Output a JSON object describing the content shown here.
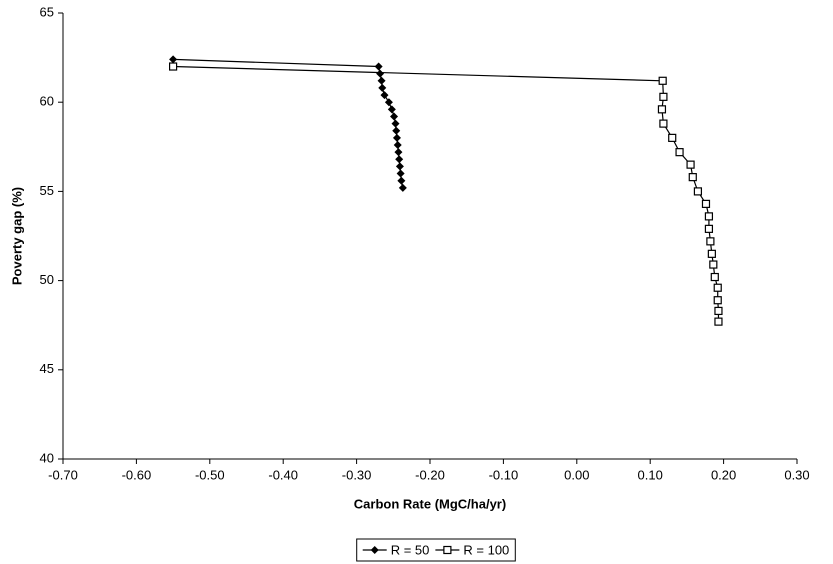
{
  "chart_data": {
    "type": "line",
    "xlabel": "Carbon Rate (MgC/ha/yr)",
    "ylabel": "Poverty gap (%)",
    "xlim": [
      -0.7,
      0.3
    ],
    "ylim": [
      40,
      65
    ],
    "xticks": [
      {
        "value": -0.7,
        "label": "-0.70"
      },
      {
        "value": -0.6,
        "label": "-0.60"
      },
      {
        "value": -0.5,
        "label": "-0.50"
      },
      {
        "value": -0.4,
        "label": "-0.40"
      },
      {
        "value": -0.3,
        "label": "-0.30"
      },
      {
        "value": -0.2,
        "label": "-0.20"
      },
      {
        "value": -0.1,
        "label": "-0.10"
      },
      {
        "value": 0,
        "label": "0.00"
      },
      {
        "value": 0.1,
        "label": "0.10"
      },
      {
        "value": 0.2,
        "label": "0.20"
      },
      {
        "value": 0.3,
        "label": "0.30"
      }
    ],
    "yticks": [
      40,
      45,
      50,
      55,
      60,
      65
    ],
    "grid": false,
    "legend": "bottom",
    "series": [
      {
        "name": "R = 50",
        "color": "#000000",
        "marker": "diamond",
        "x": [
          -0.55,
          -0.27,
          -0.268,
          -0.266,
          -0.265,
          -0.262,
          -0.256,
          -0.252,
          -0.249,
          -0.247,
          -0.246,
          -0.245,
          -0.244,
          -0.243,
          -0.242,
          -0.241,
          -0.24,
          -0.239,
          -0.237
        ],
        "values": [
          62.4,
          62.0,
          61.6,
          61.2,
          60.8,
          60.4,
          60.0,
          59.6,
          59.2,
          58.8,
          58.4,
          58.0,
          57.6,
          57.2,
          56.8,
          56.4,
          56.0,
          55.6,
          55.2
        ]
      },
      {
        "name": "R = 100",
        "color": "#000000",
        "marker": "square",
        "x": [
          -0.55,
          0.117,
          0.118,
          0.116,
          0.118,
          0.13,
          0.14,
          0.155,
          0.158,
          0.165,
          0.176,
          0.18,
          0.18,
          0.182,
          0.184,
          0.186,
          0.188,
          0.192,
          0.192,
          0.193,
          0.193
        ],
        "values": [
          62.0,
          61.2,
          60.3,
          59.6,
          58.8,
          58.0,
          57.2,
          56.5,
          55.8,
          55.0,
          54.3,
          53.6,
          52.9,
          52.2,
          51.5,
          50.9,
          50.2,
          49.6,
          48.9,
          48.3,
          47.7
        ]
      }
    ]
  }
}
